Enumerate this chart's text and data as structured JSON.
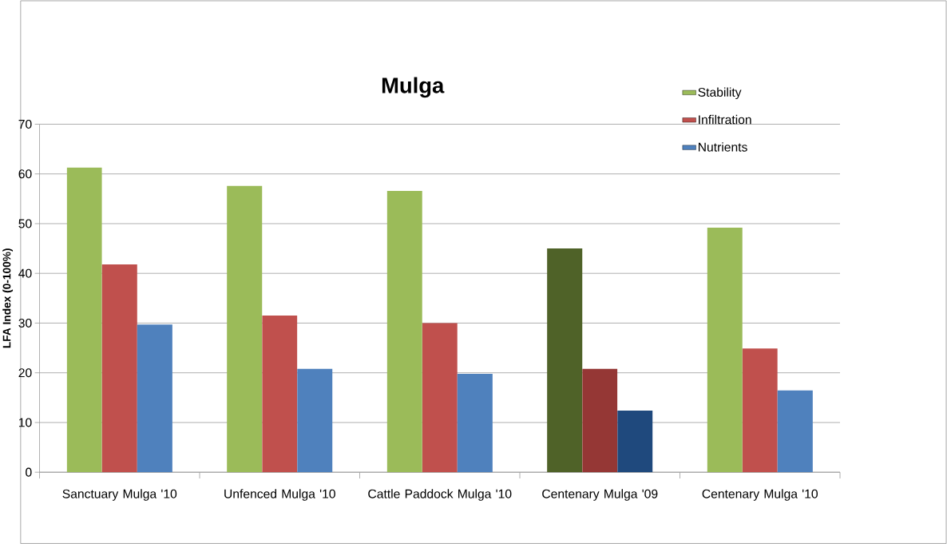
{
  "chart_data": {
    "type": "bar",
    "title": "Mulga",
    "ylabel": "LFA Index (0-100%)",
    "categories": [
      "Sanctuary Mulga '10",
      "Unfenced Mulga '10",
      "Cattle Paddock Mulga '10",
      "Centenary Mulga '09",
      "Centenary Mulga '10"
    ],
    "series": [
      {
        "name": "Stability",
        "color": "#9bbb59",
        "colors": [
          "#9bbb59",
          "#9bbb59",
          "#9bbb59",
          "#4f6228",
          "#9bbb59"
        ],
        "values": [
          61.3,
          57.6,
          56.6,
          45.0,
          49.2
        ]
      },
      {
        "name": "Infiltration",
        "color": "#c0504d",
        "colors": [
          "#c0504d",
          "#c0504d",
          "#c0504d",
          "#953735",
          "#c0504d"
        ],
        "values": [
          41.8,
          31.5,
          30.0,
          20.8,
          24.9
        ]
      },
      {
        "name": "Nutrients",
        "color": "#4f81bd",
        "colors": [
          "#4f81bd",
          "#4f81bd",
          "#4f81bd",
          "#1f497d",
          "#4f81bd"
        ],
        "values": [
          29.7,
          20.8,
          19.8,
          12.4,
          16.5
        ]
      }
    ],
    "ylim": [
      0,
      70
    ],
    "yticks": [
      0,
      10,
      20,
      30,
      40,
      50,
      60,
      70
    ],
    "grid": "y",
    "legend": "top right"
  }
}
